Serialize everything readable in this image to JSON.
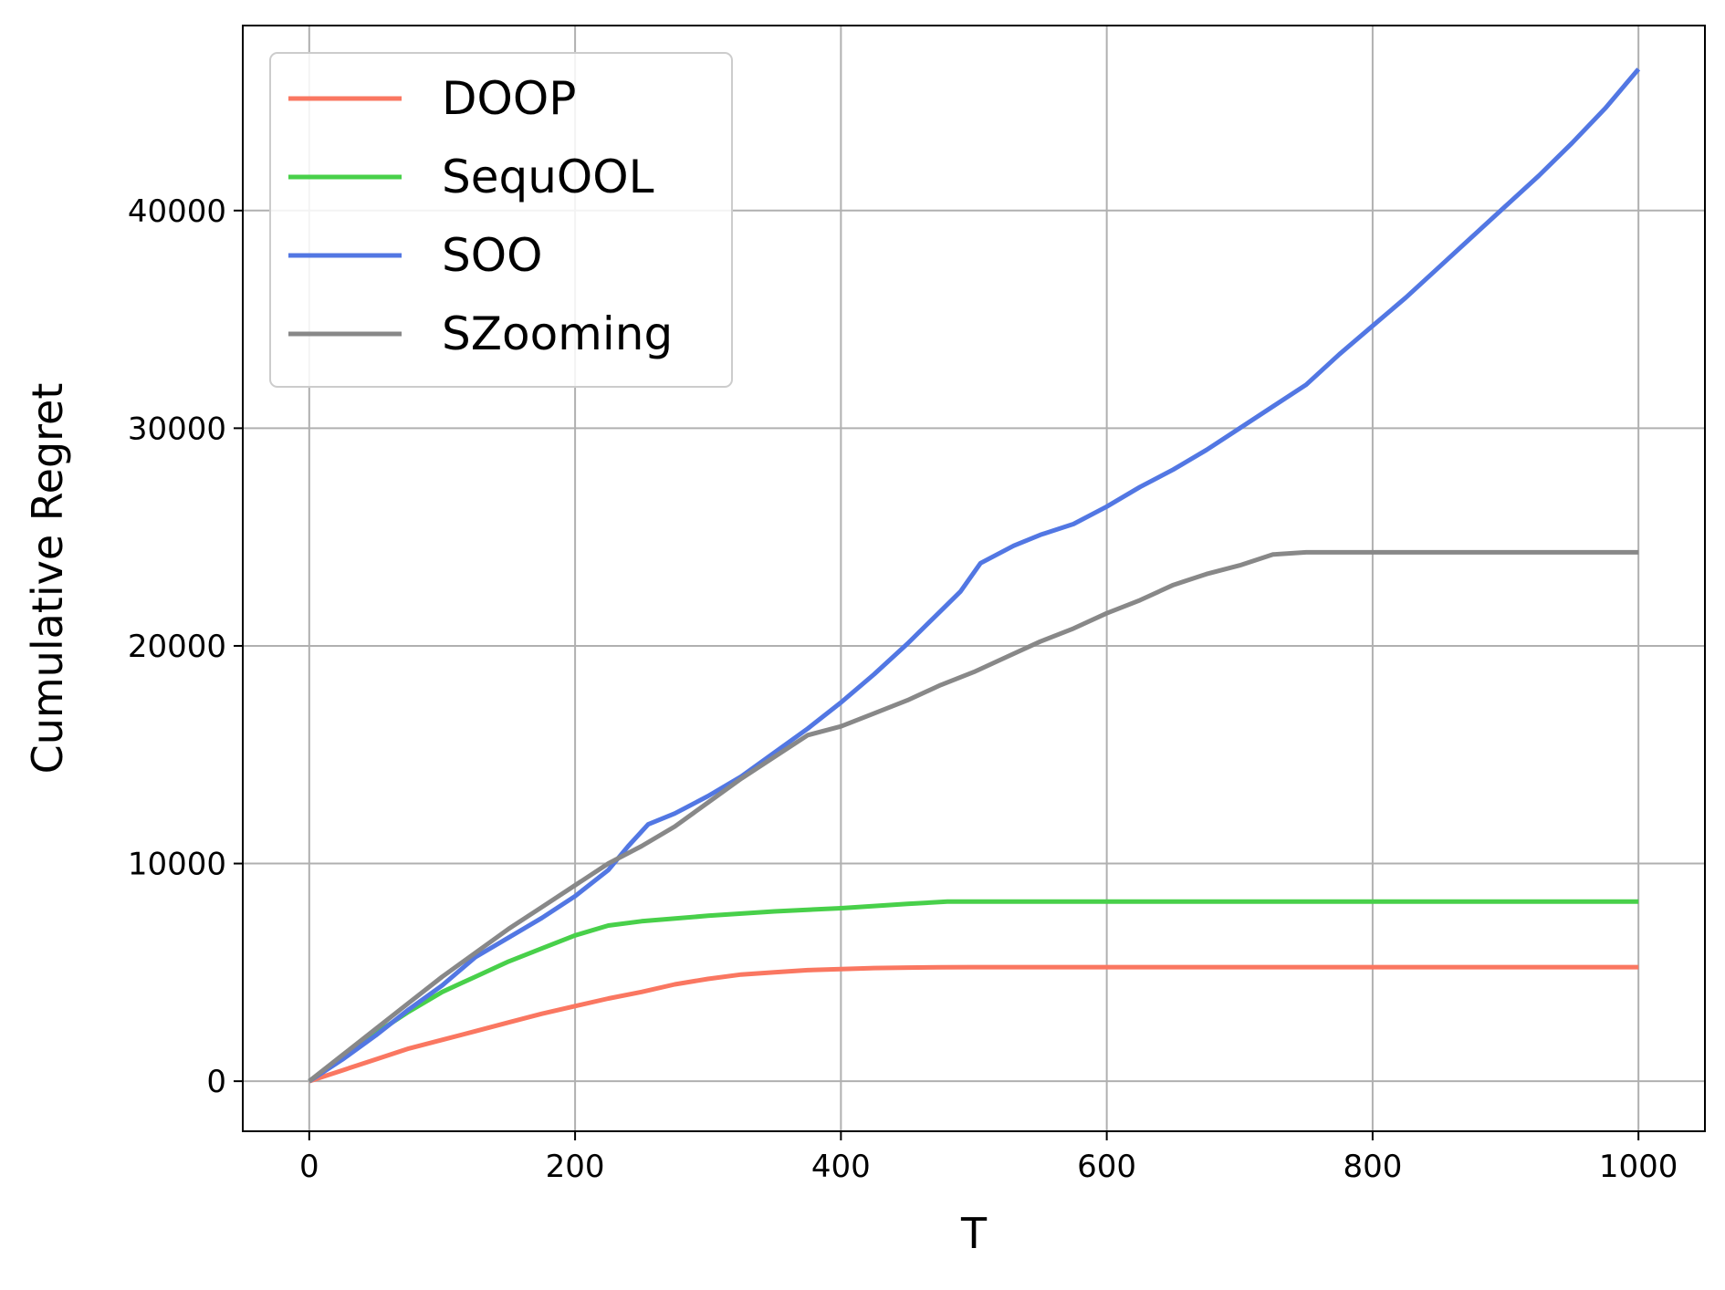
{
  "chart_data": {
    "type": "line",
    "title": "",
    "xlabel": "T",
    "ylabel": "Cumulative Regret",
    "xlim": [
      -50,
      1050
    ],
    "ylim": [
      -2300,
      48500
    ],
    "xticks": [
      0,
      200,
      400,
      600,
      800,
      1000
    ],
    "yticks": [
      0,
      10000,
      20000,
      30000,
      40000
    ],
    "grid": true,
    "legend_position": "top-left",
    "series": [
      {
        "name": "DOOP",
        "color": "#fa7761",
        "x": [
          0,
          25,
          50,
          75,
          100,
          125,
          150,
          175,
          200,
          225,
          250,
          275,
          300,
          325,
          350,
          375,
          400,
          425,
          450,
          475,
          500,
          600,
          700,
          800,
          900,
          1000
        ],
        "y": [
          0,
          500,
          1000,
          1500,
          1900,
          2300,
          2700,
          3100,
          3450,
          3800,
          4100,
          4450,
          4700,
          4900,
          5000,
          5100,
          5150,
          5200,
          5220,
          5230,
          5240,
          5240,
          5240,
          5240,
          5240,
          5240
        ]
      },
      {
        "name": "SequOOL",
        "color": "#48d04a",
        "x": [
          0,
          25,
          50,
          75,
          100,
          125,
          150,
          175,
          200,
          225,
          250,
          300,
          350,
          400,
          450,
          480,
          600,
          700,
          800,
          900,
          1000
        ],
        "y": [
          0,
          1100,
          2200,
          3200,
          4100,
          4800,
          5500,
          6100,
          6700,
          7150,
          7350,
          7600,
          7800,
          7950,
          8150,
          8250,
          8250,
          8250,
          8250,
          8250,
          8250
        ]
      },
      {
        "name": "SOO",
        "color": "#5277e3",
        "x": [
          0,
          25,
          50,
          75,
          100,
          125,
          150,
          175,
          200,
          225,
          240,
          255,
          275,
          300,
          325,
          350,
          375,
          400,
          425,
          450,
          475,
          490,
          505,
          530,
          550,
          575,
          600,
          625,
          650,
          675,
          700,
          725,
          750,
          775,
          800,
          825,
          850,
          875,
          900,
          925,
          950,
          975,
          1000
        ],
        "y": [
          0,
          1000,
          2100,
          3300,
          4400,
          5700,
          6600,
          7500,
          8500,
          9700,
          10800,
          11800,
          12300,
          13100,
          14000,
          15100,
          16200,
          17400,
          18700,
          20100,
          21600,
          22500,
          23800,
          24600,
          25100,
          25600,
          26400,
          27300,
          28100,
          29000,
          30000,
          31000,
          32000,
          33400,
          34700,
          36000,
          37400,
          38800,
          40200,
          41600,
          43100,
          44700,
          46500
        ]
      },
      {
        "name": "SZooming",
        "color": "#888888",
        "x": [
          0,
          25,
          50,
          75,
          100,
          125,
          150,
          175,
          200,
          225,
          250,
          275,
          300,
          325,
          350,
          375,
          400,
          425,
          450,
          475,
          500,
          525,
          550,
          575,
          600,
          625,
          650,
          675,
          700,
          725,
          750,
          800,
          900,
          1000
        ],
        "y": [
          0,
          1200,
          2400,
          3600,
          4800,
          5900,
          7000,
          8000,
          9000,
          10000,
          10800,
          11700,
          12800,
          13900,
          14900,
          15900,
          16300,
          16900,
          17500,
          18200,
          18800,
          19500,
          20200,
          20800,
          21500,
          22100,
          22800,
          23300,
          23700,
          24200,
          24300,
          24300,
          24300,
          24300
        ]
      }
    ]
  }
}
